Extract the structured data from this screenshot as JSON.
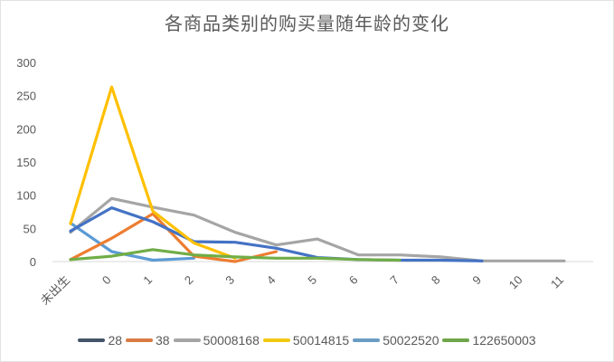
{
  "chart_data": {
    "type": "line",
    "title": "各商品类别的购买量随年龄的变化",
    "xlabel": "",
    "ylabel": "",
    "ylim": [
      0,
      300
    ],
    "yticks": [
      0,
      50,
      100,
      150,
      200,
      250,
      300
    ],
    "grid": false,
    "legend_position": "bottom",
    "categories": [
      "未出生",
      "0",
      "1",
      "2",
      "3",
      "4",
      "5",
      "6",
      "7",
      "8",
      "9",
      "10",
      "11"
    ],
    "series": [
      {
        "name": "28",
        "color": "#4472C4",
        "values": [
          46,
          81,
          60,
          30,
          29,
          20,
          6,
          3,
          2,
          2,
          1,
          null,
          null
        ]
      },
      {
        "name": "38",
        "color": "#ED7D31",
        "values": [
          3,
          35,
          72,
          8,
          0,
          15,
          null,
          null,
          null,
          null,
          null,
          null,
          null
        ]
      },
      {
        "name": "50008168",
        "color": "#A5A5A5",
        "values": [
          44,
          95,
          82,
          70,
          44,
          25,
          34,
          10,
          10,
          7,
          1,
          1,
          1
        ]
      },
      {
        "name": "50014815",
        "color": "#FFC000",
        "values": [
          57,
          263,
          76,
          28,
          5,
          null,
          null,
          null,
          null,
          null,
          null,
          null,
          null
        ]
      },
      {
        "name": "50022520",
        "color": "#5B9BD5",
        "values": [
          58,
          15,
          2,
          5,
          null,
          null,
          null,
          null,
          null,
          null,
          null,
          null,
          null
        ]
      },
      {
        "name": "122650003",
        "color": "#70AD47",
        "values": [
          3,
          8,
          18,
          10,
          7,
          5,
          5,
          3,
          2,
          null,
          null,
          null,
          null
        ]
      }
    ]
  },
  "legend": [
    {
      "label": "28",
      "color": "#44546A"
    },
    {
      "label": "38",
      "color": "#D97B43"
    },
    {
      "label": "50008168",
      "color": "#A5A5A5"
    },
    {
      "label": "50014815",
      "color": "#F2C811"
    },
    {
      "label": "50022520",
      "color": "#6A9CC4"
    },
    {
      "label": "122650003",
      "color": "#6FA64A"
    }
  ]
}
